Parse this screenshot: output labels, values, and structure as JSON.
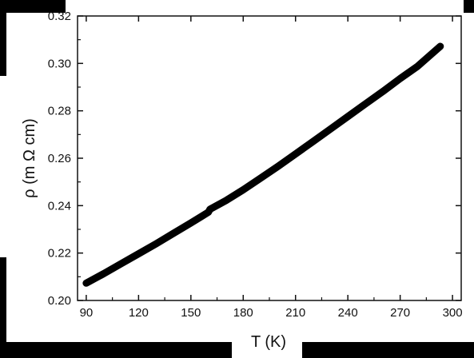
{
  "chart_data": {
    "type": "line",
    "title": "",
    "xlabel": "T (K)",
    "ylabel": "ρ (m Ω cm)",
    "xlim": [
      85,
      305
    ],
    "ylim": [
      0.2,
      0.32
    ],
    "x_ticks": [
      90,
      120,
      150,
      180,
      210,
      240,
      270,
      300
    ],
    "x_tick_labels": [
      "90",
      "120",
      "150",
      "180",
      "210",
      "240",
      "270",
      "300"
    ],
    "y_ticks": [
      0.2,
      0.22,
      0.24,
      0.26,
      0.28,
      0.3,
      0.32
    ],
    "y_tick_labels": [
      "0.20",
      "0.22",
      "0.24",
      "0.26",
      "0.28",
      "0.30",
      "0.32"
    ],
    "grid": false,
    "legend": "none",
    "line_color": "#000000",
    "series": [
      {
        "x": [
          90,
          100,
          110,
          120,
          130,
          140,
          150,
          160,
          161,
          170,
          180,
          190,
          200,
          210,
          220,
          230,
          240,
          250,
          260,
          270,
          280,
          293
        ],
        "y": [
          0.2073,
          0.2113,
          0.2155,
          0.2197,
          0.2239,
          0.2283,
          0.2327,
          0.2372,
          0.2385,
          0.2421,
          0.2467,
          0.2516,
          0.2566,
          0.2618,
          0.267,
          0.2723,
          0.2776,
          0.2829,
          0.2881,
          0.2936,
          0.2988,
          0.3072
        ]
      }
    ]
  }
}
